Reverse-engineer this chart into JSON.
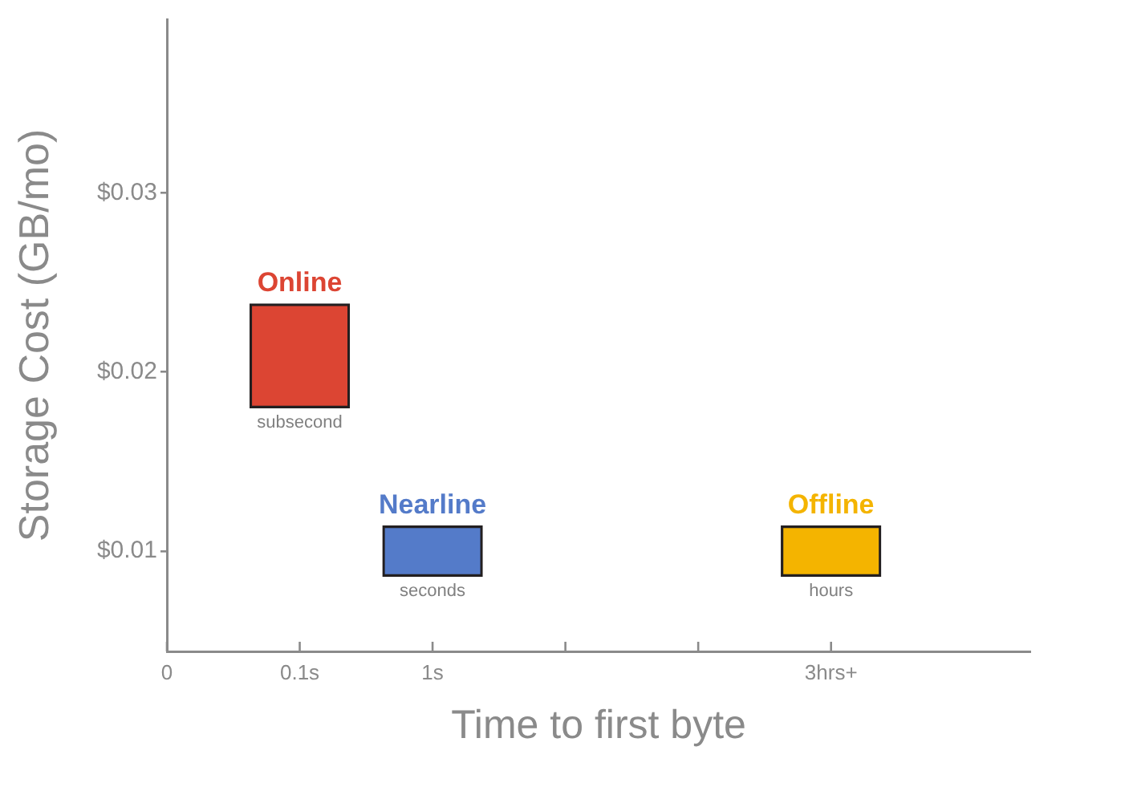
{
  "chart_data": {
    "type": "bar",
    "xlabel": "Time to first byte",
    "ylabel": "Storage Cost (GB/mo)",
    "categories": [
      "0",
      "0.1s",
      "1s",
      null,
      null,
      "3hrs+"
    ],
    "ylim": [
      0.0044,
      0.0397
    ],
    "yticks": [
      {
        "value": 0.01,
        "label": "$0.01"
      },
      {
        "value": 0.02,
        "label": "$0.02"
      },
      {
        "value": 0.03,
        "label": "$0.03"
      }
    ],
    "series": [
      {
        "name": "Online",
        "color": "#dc4533",
        "base": [
          null,
          0.018,
          null,
          null,
          null,
          null
        ],
        "values": [
          null,
          0.0058,
          null,
          null,
          null,
          null
        ]
      },
      {
        "name": "Nearline",
        "color": "#547bc9",
        "base": [
          null,
          null,
          0.0086,
          null,
          null,
          null
        ],
        "values": [
          null,
          null,
          0.0028,
          null,
          null,
          null
        ]
      },
      {
        "name": "Offline",
        "color": "#f4b400",
        "base": [
          null,
          null,
          null,
          null,
          null,
          0.0086
        ],
        "values": [
          null,
          null,
          null,
          null,
          null,
          0.0028
        ]
      }
    ],
    "annotations": [
      {
        "text": "subsecond",
        "x": "0.1s",
        "y": 0.018
      },
      {
        "text": "seconds",
        "x": "1s",
        "y": 0.0086
      },
      {
        "text": "hours",
        "x": "3hrs+",
        "y": 0.0086
      }
    ]
  }
}
